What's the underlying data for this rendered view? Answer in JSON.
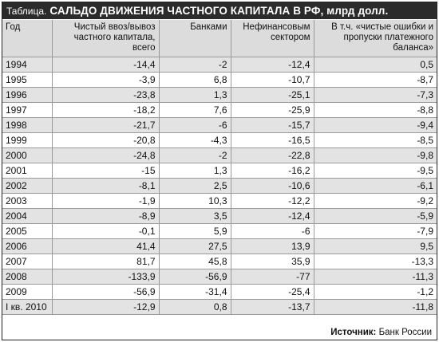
{
  "title": {
    "prefix": "Таблица.",
    "main": "САЛЬДО ДВИЖЕНИЯ ЧАСТНОГО КАПИТАЛА В РФ, млрд долл."
  },
  "columns": [
    "Год",
    "Чистый ввоз/вывоз частного капитала, всего",
    "Банками",
    "Нефинансовым сектором",
    "В т.ч. «чистые ошибки и пропуски платежного баланса»"
  ],
  "rows": [
    {
      "year": "1994",
      "total": "-14,4",
      "banks": "-2",
      "nonfin": "-12,4",
      "errors": "0,5"
    },
    {
      "year": "1995",
      "total": "-3,9",
      "banks": "6,8",
      "nonfin": "-10,7",
      "errors": "-8,7"
    },
    {
      "year": "1996",
      "total": "-23,8",
      "banks": "1,3",
      "nonfin": "-25,1",
      "errors": "-7,3"
    },
    {
      "year": "1997",
      "total": "-18,2",
      "banks": "7,6",
      "nonfin": "-25,9",
      "errors": "-8,8"
    },
    {
      "year": "1998",
      "total": "-21,7",
      "banks": "-6",
      "nonfin": "-15,7",
      "errors": "-9,4"
    },
    {
      "year": "1999",
      "total": "-20,8",
      "banks": "-4,3",
      "nonfin": "-16,5",
      "errors": "-8,5"
    },
    {
      "year": "2000",
      "total": "-24,8",
      "banks": "-2",
      "nonfin": "-22,8",
      "errors": "-9,8"
    },
    {
      "year": "2001",
      "total": "-15",
      "banks": "1,3",
      "nonfin": "-16,2",
      "errors": "-9,5"
    },
    {
      "year": "2002",
      "total": "-8,1",
      "banks": "2,5",
      "nonfin": "-10,6",
      "errors": "-6,1"
    },
    {
      "year": "2003",
      "total": "-1,9",
      "banks": "10,3",
      "nonfin": "-12,2",
      "errors": "-9,2"
    },
    {
      "year": "2004",
      "total": "-8,9",
      "banks": "3,5",
      "nonfin": "-12,4",
      "errors": "-5,9"
    },
    {
      "year": "2005",
      "total": "-0,1",
      "banks": "5,9",
      "nonfin": "-6",
      "errors": "-7,9"
    },
    {
      "year": "2006",
      "total": "41,4",
      "banks": "27,5",
      "nonfin": "13,9",
      "errors": "9,5"
    },
    {
      "year": "2007",
      "total": "81,7",
      "banks": "45,8",
      "nonfin": "35,9",
      "errors": "-13,3"
    },
    {
      "year": "2008",
      "total": "-133,9",
      "banks": "-56,9",
      "nonfin": "-77",
      "errors": "-11,3"
    },
    {
      "year": "2009",
      "total": "-56,9",
      "banks": "-31,4",
      "nonfin": "-25,4",
      "errors": "-1,2"
    },
    {
      "year": "I кв. 2010",
      "total": "-12,9",
      "banks": "0,8",
      "nonfin": "-13,7",
      "errors": "-11,8"
    }
  ],
  "source": {
    "label": "Источник:",
    "value": "Банк России"
  }
}
